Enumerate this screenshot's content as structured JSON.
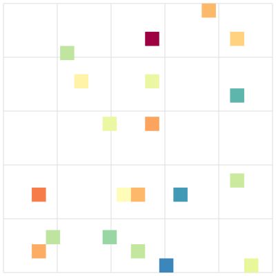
{
  "chart_data": {
    "type": "heatmap",
    "title": "",
    "xlabel": "",
    "ylabel": "",
    "grid": true,
    "grid_divisions": 5,
    "columns": 19,
    "rows": 19,
    "cells": [
      {
        "col": 14,
        "row": 0,
        "color": "#fdb96a"
      },
      {
        "col": 10,
        "row": 2,
        "color": "#9e0142"
      },
      {
        "col": 16,
        "row": 2,
        "color": "#fed27f"
      },
      {
        "col": 4,
        "row": 3,
        "color": "#c0e59f"
      },
      {
        "col": 5,
        "row": 5,
        "color": "#fff3a8"
      },
      {
        "col": 10,
        "row": 5,
        "color": "#ecf7a4"
      },
      {
        "col": 16,
        "row": 6,
        "color": "#5db5ab"
      },
      {
        "col": 7,
        "row": 8,
        "color": "#ebf7a1"
      },
      {
        "col": 10,
        "row": 8,
        "color": "#fca45d"
      },
      {
        "col": 16,
        "row": 12,
        "color": "#cbea9d"
      },
      {
        "col": 2,
        "row": 13,
        "color": "#f67c4a"
      },
      {
        "col": 8,
        "row": 13,
        "color": "#fffbb8"
      },
      {
        "col": 9,
        "row": 13,
        "color": "#fdb869"
      },
      {
        "col": 12,
        "row": 13,
        "color": "#4199b6"
      },
      {
        "col": 3,
        "row": 16,
        "color": "#bee5a0"
      },
      {
        "col": 7,
        "row": 16,
        "color": "#98d6a4"
      },
      {
        "col": 2,
        "row": 17,
        "color": "#fdad63"
      },
      {
        "col": 9,
        "row": 17,
        "color": "#c3e79f"
      },
      {
        "col": 11,
        "row": 18,
        "color": "#3b86bb"
      },
      {
        "col": 17,
        "row": 18,
        "color": "#e9f79b"
      }
    ]
  },
  "colors": {
    "grid": "#dddddd",
    "background": "#ffffff"
  }
}
